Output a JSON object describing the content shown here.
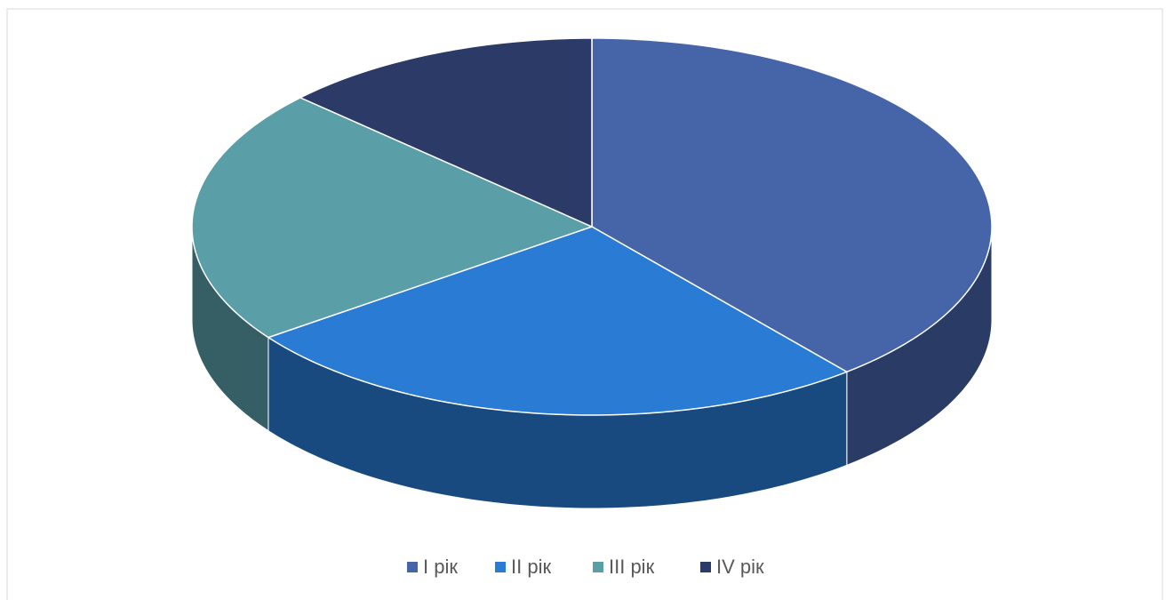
{
  "chart_data": {
    "type": "pie",
    "categories": [
      "I рік",
      "II рік",
      "III рік",
      "IV рік"
    ],
    "values": [
      39,
      26,
      22,
      13
    ],
    "colors": [
      "#4664a8",
      "#2a7bd4",
      "#5a9ea8",
      "#2b3a66"
    ],
    "legend": "bottom"
  }
}
